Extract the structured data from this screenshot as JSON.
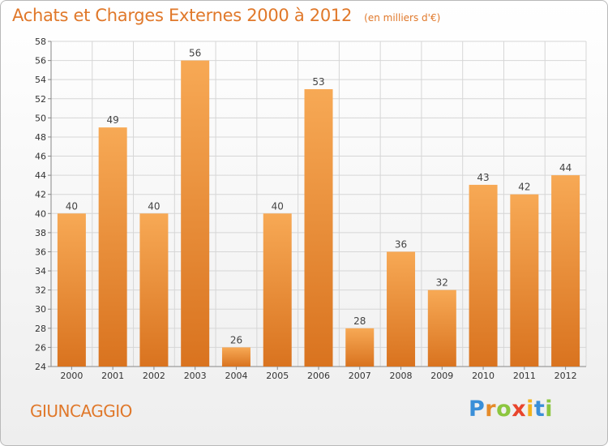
{
  "header": {
    "title": "Achats et Charges Externes 2000 à 2012",
    "subtitle": "(en milliers d'€)"
  },
  "footer": {
    "commune": "GIUNCAGGIO",
    "logo_letters": [
      "P",
      "r",
      "o",
      "x",
      "i",
      "t",
      "i"
    ]
  },
  "colors": {
    "title": "#e0782a",
    "bar_light": "#f7a955",
    "bar_dark": "#d9731f",
    "logo": [
      "#3a8fd8",
      "#e58b2a",
      "#8cc63f",
      "#e8452c",
      "#f2b21c",
      "#3a8fd8",
      "#8cc63f"
    ]
  },
  "chart_data": {
    "type": "bar",
    "categories": [
      "2000",
      "2001",
      "2002",
      "2003",
      "2004",
      "2005",
      "2006",
      "2007",
      "2008",
      "2009",
      "2010",
      "2011",
      "2012"
    ],
    "values": [
      40,
      49,
      40,
      56,
      26,
      40,
      53,
      28,
      36,
      32,
      43,
      42,
      44
    ],
    "ylim": [
      24,
      58
    ],
    "ytick_step": 2,
    "grid": true,
    "legend": "none",
    "xlabel": "",
    "ylabel": ""
  }
}
